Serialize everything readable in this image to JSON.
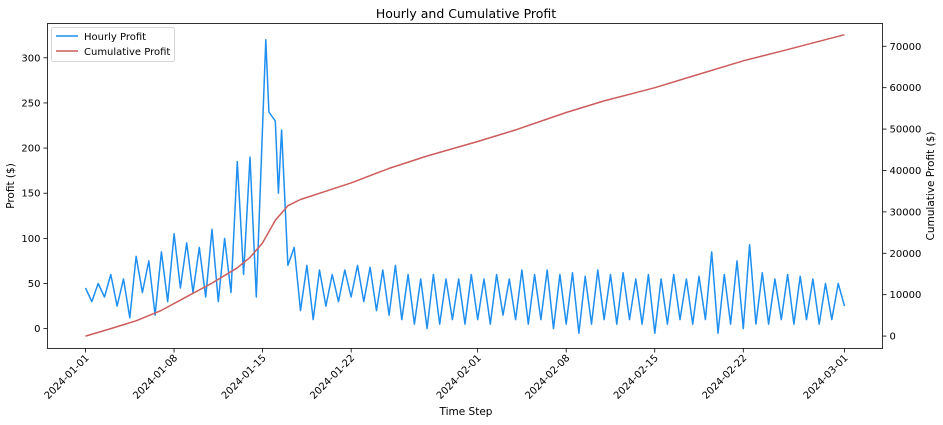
{
  "chart_data": {
    "type": "line",
    "title": "Hourly and Cumulative Profit",
    "xlabel": "Time Step",
    "ylabel_left": "Profit ($)",
    "ylabel_right": "Cumulative Profit ($)",
    "x_range": [
      "2024-01-01",
      "2024-03-01"
    ],
    "x_tick_labels": [
      "2024-01-01",
      "2024-01-08",
      "2024-01-15",
      "2024-01-22",
      "2024-02-01",
      "2024-02-08",
      "2024-02-15",
      "2024-02-22",
      "2024-03-01"
    ],
    "x_tick_dates": [
      "2024-01-01",
      "2024-01-08",
      "2024-01-15",
      "2024-01-22",
      "2024-02-01",
      "2024-02-08",
      "2024-02-15",
      "2024-02-22",
      "2024-03-01"
    ],
    "ylim_left": [
      -22,
      338
    ],
    "ylim_right": [
      -3000,
      75500
    ],
    "yticks_left": [
      0,
      50,
      100,
      150,
      200,
      250,
      300
    ],
    "yticks_right": [
      0,
      10000,
      20000,
      30000,
      40000,
      50000,
      60000,
      70000
    ],
    "legend_position": "upper-left",
    "grid": false,
    "series": [
      {
        "name": "Hourly Profit",
        "axis": "left",
        "color": "#1f8ff0",
        "points": [
          [
            "2024-01-01",
            45
          ],
          [
            "2024-01-01T12:00",
            30
          ],
          [
            "2024-01-02",
            50
          ],
          [
            "2024-01-02T12:00",
            35
          ],
          [
            "2024-01-03",
            60
          ],
          [
            "2024-01-03T12:00",
            25
          ],
          [
            "2024-01-04",
            55
          ],
          [
            "2024-01-04T12:00",
            12
          ],
          [
            "2024-01-05",
            80
          ],
          [
            "2024-01-05T12:00",
            40
          ],
          [
            "2024-01-06",
            75
          ],
          [
            "2024-01-06T12:00",
            15
          ],
          [
            "2024-01-07",
            85
          ],
          [
            "2024-01-07T12:00",
            30
          ],
          [
            "2024-01-08",
            105
          ],
          [
            "2024-01-08T12:00",
            45
          ],
          [
            "2024-01-09",
            95
          ],
          [
            "2024-01-09T12:00",
            40
          ],
          [
            "2024-01-10",
            90
          ],
          [
            "2024-01-10T12:00",
            35
          ],
          [
            "2024-01-11",
            110
          ],
          [
            "2024-01-11T12:00",
            30
          ],
          [
            "2024-01-12",
            100
          ],
          [
            "2024-01-12T12:00",
            40
          ],
          [
            "2024-01-13",
            185
          ],
          [
            "2024-01-13T12:00",
            60
          ],
          [
            "2024-01-14",
            190
          ],
          [
            "2024-01-14T12:00",
            35
          ],
          [
            "2024-01-15",
            225
          ],
          [
            "2024-01-15T06:00",
            320
          ],
          [
            "2024-01-15T12:00",
            240
          ],
          [
            "2024-01-16",
            230
          ],
          [
            "2024-01-16T06:00",
            150
          ],
          [
            "2024-01-16T12:00",
            220
          ],
          [
            "2024-01-17",
            70
          ],
          [
            "2024-01-17T12:00",
            90
          ],
          [
            "2024-01-18",
            20
          ],
          [
            "2024-01-18T12:00",
            70
          ],
          [
            "2024-01-19",
            10
          ],
          [
            "2024-01-19T12:00",
            65
          ],
          [
            "2024-01-20",
            25
          ],
          [
            "2024-01-20T12:00",
            60
          ],
          [
            "2024-01-21",
            30
          ],
          [
            "2024-01-21T12:00",
            65
          ],
          [
            "2024-01-22",
            35
          ],
          [
            "2024-01-22T12:00",
            70
          ],
          [
            "2024-01-23",
            30
          ],
          [
            "2024-01-23T12:00",
            68
          ],
          [
            "2024-01-24",
            20
          ],
          [
            "2024-01-24T12:00",
            65
          ],
          [
            "2024-01-25",
            15
          ],
          [
            "2024-01-25T12:00",
            70
          ],
          [
            "2024-01-26",
            10
          ],
          [
            "2024-01-26T12:00",
            60
          ],
          [
            "2024-01-27",
            5
          ],
          [
            "2024-01-27T12:00",
            55
          ],
          [
            "2024-01-28",
            0
          ],
          [
            "2024-01-28T12:00",
            60
          ],
          [
            "2024-01-29",
            5
          ],
          [
            "2024-01-29T12:00",
            55
          ],
          [
            "2024-01-30",
            10
          ],
          [
            "2024-01-30T12:00",
            55
          ],
          [
            "2024-01-31",
            5
          ],
          [
            "2024-01-31T12:00",
            60
          ],
          [
            "2024-02-01",
            10
          ],
          [
            "2024-02-01T12:00",
            55
          ],
          [
            "2024-02-02",
            5
          ],
          [
            "2024-02-02T12:00",
            60
          ],
          [
            "2024-02-03",
            15
          ],
          [
            "2024-02-03T12:00",
            55
          ],
          [
            "2024-02-04",
            10
          ],
          [
            "2024-02-04T12:00",
            65
          ],
          [
            "2024-02-05",
            5
          ],
          [
            "2024-02-05T12:00",
            60
          ],
          [
            "2024-02-06",
            10
          ],
          [
            "2024-02-06T12:00",
            65
          ],
          [
            "2024-02-07",
            0
          ],
          [
            "2024-02-07T12:00",
            60
          ],
          [
            "2024-02-08",
            5
          ],
          [
            "2024-02-08T12:00",
            62
          ],
          [
            "2024-02-09",
            -5
          ],
          [
            "2024-02-09T12:00",
            58
          ],
          [
            "2024-02-10",
            5
          ],
          [
            "2024-02-10T12:00",
            65
          ],
          [
            "2024-02-11",
            10
          ],
          [
            "2024-02-11T12:00",
            60
          ],
          [
            "2024-02-12",
            5
          ],
          [
            "2024-02-12T12:00",
            62
          ],
          [
            "2024-02-13",
            10
          ],
          [
            "2024-02-13T12:00",
            55
          ],
          [
            "2024-02-14",
            5
          ],
          [
            "2024-02-14T12:00",
            60
          ],
          [
            "2024-02-15",
            -5
          ],
          [
            "2024-02-15T12:00",
            55
          ],
          [
            "2024-02-16",
            5
          ],
          [
            "2024-02-16T12:00",
            60
          ],
          [
            "2024-02-17",
            10
          ],
          [
            "2024-02-17T12:00",
            55
          ],
          [
            "2024-02-18",
            5
          ],
          [
            "2024-02-18T12:00",
            58
          ],
          [
            "2024-02-19",
            10
          ],
          [
            "2024-02-19T12:00",
            85
          ],
          [
            "2024-02-20",
            -5
          ],
          [
            "2024-02-20T12:00",
            60
          ],
          [
            "2024-02-21",
            5
          ],
          [
            "2024-02-21T12:00",
            75
          ],
          [
            "2024-02-22",
            0
          ],
          [
            "2024-02-22T12:00",
            93
          ],
          [
            "2024-02-23",
            5
          ],
          [
            "2024-02-23T12:00",
            62
          ],
          [
            "2024-02-24",
            5
          ],
          [
            "2024-02-24T12:00",
            55
          ],
          [
            "2024-02-25",
            10
          ],
          [
            "2024-02-25T12:00",
            60
          ],
          [
            "2024-02-26",
            5
          ],
          [
            "2024-02-26T12:00",
            58
          ],
          [
            "2024-02-27",
            10
          ],
          [
            "2024-02-27T12:00",
            55
          ],
          [
            "2024-02-28",
            5
          ],
          [
            "2024-02-28T12:00",
            50
          ],
          [
            "2024-02-29",
            10
          ],
          [
            "2024-02-29T12:00",
            50
          ],
          [
            "2024-03-01",
            25
          ]
        ]
      },
      {
        "name": "Cumulative Profit",
        "axis": "right",
        "color": "#cd5c5c",
        "points": [
          [
            "2024-01-01",
            0
          ],
          [
            "2024-01-03",
            1800
          ],
          [
            "2024-01-05",
            3700
          ],
          [
            "2024-01-07",
            6200
          ],
          [
            "2024-01-09",
            9500
          ],
          [
            "2024-01-11",
            12800
          ],
          [
            "2024-01-13",
            16500
          ],
          [
            "2024-01-14",
            19000
          ],
          [
            "2024-01-15",
            22500
          ],
          [
            "2024-01-16",
            28000
          ],
          [
            "2024-01-17",
            31500
          ],
          [
            "2024-01-18",
            33000
          ],
          [
            "2024-01-20",
            35000
          ],
          [
            "2024-01-22",
            37000
          ],
          [
            "2024-01-25",
            40500
          ],
          [
            "2024-01-28",
            43500
          ],
          [
            "2024-02-01",
            47000
          ],
          [
            "2024-02-04",
            49800
          ],
          [
            "2024-02-08",
            54000
          ],
          [
            "2024-02-11",
            56800
          ],
          [
            "2024-02-15",
            60000
          ],
          [
            "2024-02-18",
            62800
          ],
          [
            "2024-02-22",
            66500
          ],
          [
            "2024-02-25",
            68800
          ],
          [
            "2024-03-01",
            72800
          ]
        ]
      }
    ]
  }
}
